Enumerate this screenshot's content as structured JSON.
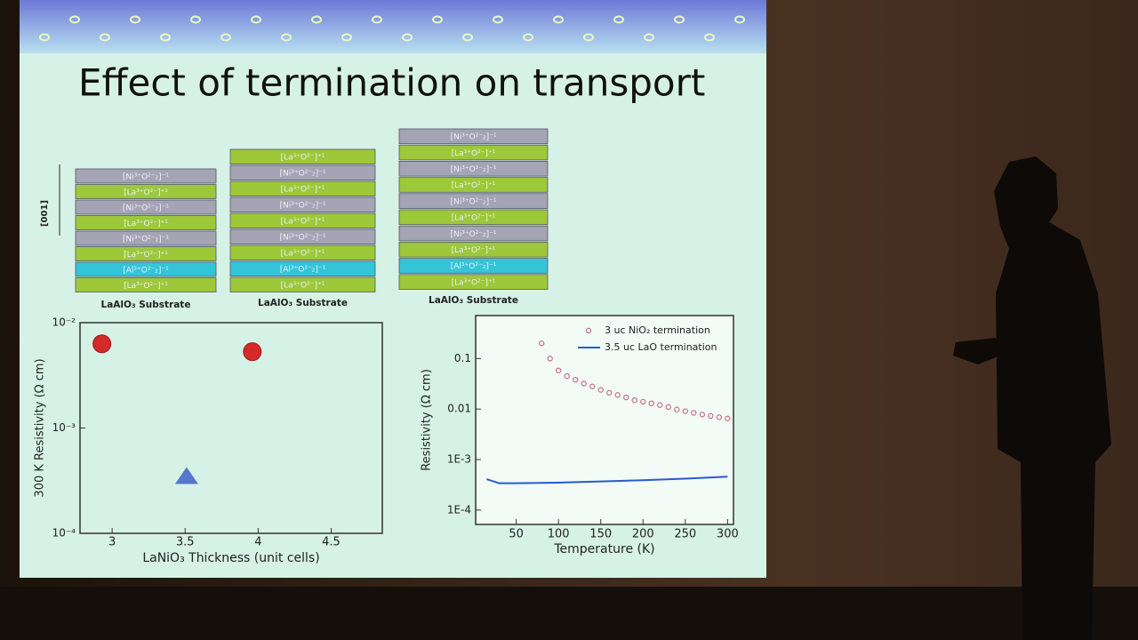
{
  "title": "Effect of termination on transport",
  "stacks": [
    {
      "caption": "LaAlO₃ Substrate",
      "layers": [
        {
          "label": "[Ni³⁺O²⁻₂]⁻¹",
          "color": "#a4a4b4"
        },
        {
          "label": "[La³⁺O²⁻]⁺¹",
          "color": "#9cc83a"
        },
        {
          "label": "[Ni³⁺O²⁻₂]⁻¹",
          "color": "#a4a4b4"
        },
        {
          "label": "[La³⁺O²⁻]⁺¹",
          "color": "#9cc83a"
        },
        {
          "label": "[Ni³⁺O²⁻₂]⁻¹",
          "color": "#a4a4b4"
        },
        {
          "label": "[La³⁺O²⁻]⁺¹",
          "color": "#9cc83a"
        },
        {
          "label": "[Al³⁺O²⁻₂]⁻¹",
          "color": "#34c4d8"
        },
        {
          "label": "[La³⁺O²⁻]⁺¹",
          "color": "#9cc83a"
        }
      ]
    },
    {
      "caption": "LaAlO₃ Substrate",
      "layers": [
        {
          "label": "[La³⁺O²⁻]⁺¹",
          "color": "#9cc83a"
        },
        {
          "label": "[Ni³⁺O²⁻₂]⁻¹",
          "color": "#a4a4b4"
        },
        {
          "label": "[La³⁺O²⁻]⁺¹",
          "color": "#9cc83a"
        },
        {
          "label": "[Ni³⁺O²⁻₂]⁻¹",
          "color": "#a4a4b4"
        },
        {
          "label": "[La³⁺O²⁻]⁺¹",
          "color": "#9cc83a"
        },
        {
          "label": "[Ni³⁺O²⁻₂]⁻¹",
          "color": "#a4a4b4"
        },
        {
          "label": "[La³⁺O²⁻]⁺¹",
          "color": "#9cc83a"
        },
        {
          "label": "[Al³⁺O²⁻₂]⁻¹",
          "color": "#34c4d8"
        },
        {
          "label": "[La³⁺O²⁻]⁺¹",
          "color": "#9cc83a"
        }
      ]
    },
    {
      "caption": "LaAlO₃ Substrate",
      "layers": [
        {
          "label": "[Ni³⁺O²⁻₂]⁻¹",
          "color": "#a4a4b4"
        },
        {
          "label": "[La³⁺O²⁻]⁺¹",
          "color": "#9cc83a"
        },
        {
          "label": "[Ni³⁺O²⁻₂]⁻¹",
          "color": "#a4a4b4"
        },
        {
          "label": "[La³⁺O²⁻]⁺¹",
          "color": "#9cc83a"
        },
        {
          "label": "[Ni³⁺O²⁻₂]⁻¹",
          "color": "#a4a4b4"
        },
        {
          "label": "[La³⁺O²⁻]⁺¹",
          "color": "#9cc83a"
        },
        {
          "label": "[Ni³⁺O²⁻₂]⁻¹",
          "color": "#a4a4b4"
        },
        {
          "label": "[La³⁺O²⁻]⁺¹",
          "color": "#9cc83a"
        },
        {
          "label": "[Al³⁺O²⁻₂]⁻¹",
          "color": "#34c4d8"
        },
        {
          "label": "[La³⁺O²⁻]⁺¹",
          "color": "#9cc83a"
        }
      ]
    }
  ],
  "axis_label": "[001]",
  "chart_data": [
    {
      "type": "scatter",
      "xlabel": "LaNiO₃ Thickness (unit cells)",
      "ylabel": "300 K Resistivity (Ω cm)",
      "xlim": [
        2.78,
        4.85
      ],
      "xticks": [
        3,
        3.5,
        4,
        4.5
      ],
      "ylim": [
        0.0001,
        0.01
      ],
      "log_y": true,
      "yticks": [
        {
          "value": 0.0001,
          "label": "10⁻⁴"
        },
        {
          "value": 0.001,
          "label": "10⁻³"
        },
        {
          "value": 0.01,
          "label": "10⁻²"
        }
      ],
      "series": [
        {
          "marker": "circle",
          "color": "#d42a2a",
          "x": [
            2.93,
            3.96
          ],
          "values": [
            0.0063,
            0.0053
          ]
        },
        {
          "marker": "triangle",
          "color": "#5577cc",
          "x": [
            3.51
          ],
          "values": [
            0.00035
          ]
        }
      ]
    },
    {
      "type": "line",
      "xlabel": "Temperature (K)",
      "ylabel": "Resistivity (Ω cm)",
      "xlim": [
        2,
        307
      ],
      "xticks": [
        50,
        100,
        150,
        200,
        250,
        300
      ],
      "ylim": [
        5.2e-05,
        0.71
      ],
      "log_y": true,
      "yticks": [
        {
          "value": 0.0001,
          "label": "1E-4"
        },
        {
          "value": 0.001,
          "label": "1E-3"
        },
        0.01,
        0.1
      ],
      "series": [
        {
          "name": "3 uc  NiO₂ termination",
          "marker": "circle-open",
          "color": "#c87080",
          "x": [
            80,
            90,
            100,
            110,
            120,
            130,
            140,
            150,
            160,
            170,
            180,
            190,
            200,
            210,
            220,
            230,
            240,
            250,
            260,
            270,
            280,
            290,
            300
          ],
          "values": [
            0.2,
            0.1,
            0.058,
            0.045,
            0.038,
            0.032,
            0.028,
            0.024,
            0.021,
            0.019,
            0.017,
            0.015,
            0.014,
            0.013,
            0.012,
            0.011,
            0.0098,
            0.0091,
            0.0084,
            0.0078,
            0.0073,
            0.0069,
            0.0065
          ]
        },
        {
          "name": "3.5 uc LaO  termination",
          "marker": "line",
          "color": "#2a5acc",
          "x": [
            15,
            30,
            50,
            100,
            150,
            200,
            250,
            300
          ],
          "values": [
            0.00041,
            0.00034,
            0.00034,
            0.00035,
            0.00037,
            0.00039,
            0.00042,
            0.00046
          ]
        }
      ]
    }
  ]
}
